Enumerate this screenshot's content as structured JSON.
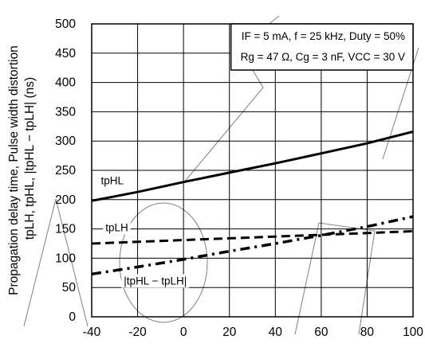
{
  "chart_data": {
    "type": "line",
    "ylabel_line1": "Propagation delay time, Pulse width distortion",
    "ylabel_line2": "tpLH, tpHL, |tpHL − tpLH|   (ns)",
    "xlim": [
      -40,
      100
    ],
    "ylim": [
      0,
      500
    ],
    "xticks": [
      "-40",
      "-20",
      "0",
      "20",
      "40",
      "60",
      "80",
      "100"
    ],
    "yticks": [
      "0",
      "50",
      "100",
      "150",
      "200",
      "250",
      "300",
      "350",
      "400",
      "450",
      "500"
    ],
    "grid": true,
    "conditions": {
      "line1": "IF = 5 mA, f = 25 kHz, Duty = 50%",
      "line2": "Rg = 47 Ω, Cg = 3 nF, VCC = 30 V"
    },
    "series": [
      {
        "name": "tpHL",
        "style": "solid",
        "x": [
          -40,
          -20,
          0,
          20,
          40,
          60,
          80,
          100
        ],
        "y": [
          198,
          213,
          230,
          246,
          262,
          279,
          296,
          316
        ]
      },
      {
        "name": "tpLH",
        "style": "dashed",
        "x": [
          -40,
          -20,
          0,
          20,
          40,
          60,
          80,
          100
        ],
        "y": [
          125,
          128,
          131,
          134,
          137,
          140,
          143,
          146
        ]
      },
      {
        "name": "|tpHL − tpLH|",
        "style": "dashdot",
        "x": [
          -40,
          -20,
          0,
          20,
          40,
          60,
          80,
          100
        ],
        "y": [
          73,
          85,
          98,
          112,
          125,
          139,
          154,
          171
        ]
      }
    ]
  }
}
